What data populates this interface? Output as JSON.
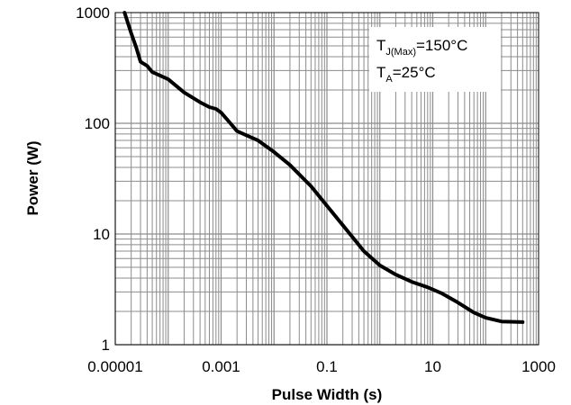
{
  "chart_data": {
    "type": "line",
    "xlabel": "Pulse Width (s)",
    "ylabel": "Power (W)",
    "x_scale": "log",
    "y_scale": "log",
    "xlim": [
      1e-05,
      1000
    ],
    "ylim": [
      1,
      1000
    ],
    "x_ticks": [
      "0.00001",
      "0.001",
      "0.1",
      "10",
      "1000"
    ],
    "y_ticks": [
      "1000",
      "100",
      "10",
      "1"
    ],
    "grid": true,
    "annotation": {
      "line1_main": "T",
      "line1_sub": "J(Max)",
      "line1_rest": "=150°C",
      "line2_main": "T",
      "line2_sub": "A",
      "line2_rest": "=25°C",
      "placement": "top-right"
    },
    "series": [
      {
        "color": "#000000",
        "points": [
          [
            1.5e-05,
            1000
          ],
          [
            2e-05,
            650
          ],
          [
            2.5e-05,
            480
          ],
          [
            3e-05,
            360
          ],
          [
            4e-05,
            330
          ],
          [
            5e-05,
            290
          ],
          [
            0.0001,
            250
          ],
          [
            0.0002,
            190
          ],
          [
            0.0004,
            155
          ],
          [
            0.0006,
            140
          ],
          [
            0.0008,
            135
          ],
          [
            0.001,
            125
          ],
          [
            0.0015,
            100
          ],
          [
            0.002,
            85
          ],
          [
            0.003,
            78
          ],
          [
            0.005,
            70
          ],
          [
            0.01,
            55
          ],
          [
            0.02,
            42
          ],
          [
            0.05,
            27
          ],
          [
            0.1,
            18
          ],
          [
            0.2,
            12
          ],
          [
            0.5,
            7
          ],
          [
            1,
            5.2
          ],
          [
            2,
            4.3
          ],
          [
            4,
            3.7
          ],
          [
            8,
            3.3
          ],
          [
            15,
            2.9
          ],
          [
            30,
            2.4
          ],
          [
            60,
            1.95
          ],
          [
            100,
            1.75
          ],
          [
            200,
            1.62
          ],
          [
            500,
            1.6
          ]
        ]
      }
    ]
  }
}
